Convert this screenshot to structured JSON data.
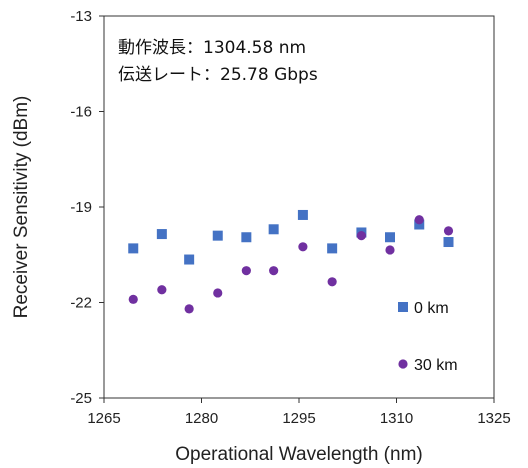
{
  "chart_data": {
    "type": "scatter",
    "xlabel": "Operational Wavelength (nm)",
    "ylabel": "Receiver Sensitivity (dBm)",
    "xlim": [
      1265,
      1325
    ],
    "ylim": [
      -25,
      -13
    ],
    "xticks": [
      1265,
      1280,
      1295,
      1310,
      1325
    ],
    "yticks": [
      -25,
      -22,
      -19,
      -16,
      -13
    ],
    "annotations": [
      "動作波長：1304.58 nm",
      "伝送レート：25.78 Gbps"
    ],
    "legend_position": "bottom-right",
    "grid": false,
    "series": [
      {
        "name": "0 km",
        "marker": "square",
        "color": "#4472C4",
        "x": [
          1269.5,
          1273.9,
          1278.1,
          1282.5,
          1286.9,
          1291.1,
          1295.6,
          1300.1,
          1304.6,
          1309.0,
          1313.5,
          1318.0
        ],
        "y": [
          -20.3,
          -19.85,
          -20.65,
          -19.9,
          -19.95,
          -19.7,
          -19.25,
          -20.3,
          -19.8,
          -19.95,
          -19.55,
          -20.1
        ]
      },
      {
        "name": "30 km",
        "marker": "circle",
        "color": "#7030A0",
        "x": [
          1269.5,
          1273.9,
          1278.1,
          1282.5,
          1286.9,
          1291.1,
          1295.6,
          1300.1,
          1304.6,
          1309.0,
          1313.5,
          1318.0
        ],
        "y": [
          -21.9,
          -21.6,
          -22.2,
          -21.7,
          -21.0,
          -21.0,
          -20.25,
          -21.35,
          -19.9,
          -20.35,
          -19.4,
          -19.75
        ]
      }
    ]
  }
}
